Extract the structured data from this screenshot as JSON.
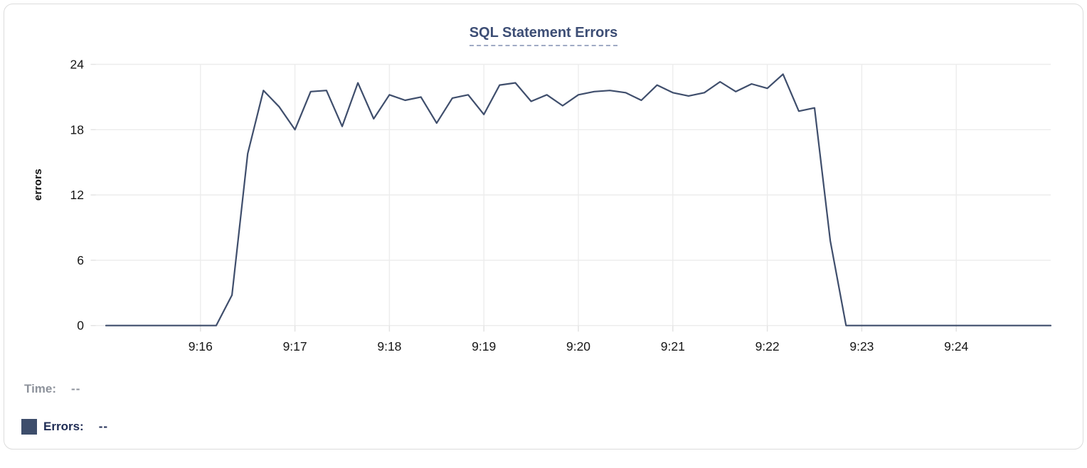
{
  "panel": {
    "title": "SQL Statement Errors"
  },
  "chart_data": {
    "type": "line",
    "title": "SQL Statement Errors",
    "xlabel": "",
    "ylabel": "errors",
    "ylim": [
      0,
      24
    ],
    "y_ticks": [
      0,
      6,
      12,
      18,
      24
    ],
    "x_tick_labels": [
      "9:16",
      "9:17",
      "9:18",
      "9:19",
      "9:20",
      "9:21",
      "9:22",
      "9:23",
      "9:24"
    ],
    "x_range": [
      "9:15:00",
      "9:25:00"
    ],
    "grid": true,
    "legend_position": "bottom-left",
    "series": [
      {
        "name": "Errors",
        "color": "#3f4e6c",
        "x": [
          "9:15:00",
          "9:15:10",
          "9:15:20",
          "9:15:30",
          "9:15:40",
          "9:15:50",
          "9:16:00",
          "9:16:10",
          "9:16:20",
          "9:16:30",
          "9:16:40",
          "9:16:50",
          "9:17:00",
          "9:17:10",
          "9:17:20",
          "9:17:30",
          "9:17:40",
          "9:17:50",
          "9:18:00",
          "9:18:10",
          "9:18:20",
          "9:18:30",
          "9:18:40",
          "9:18:50",
          "9:19:00",
          "9:19:10",
          "9:19:20",
          "9:19:30",
          "9:19:40",
          "9:19:50",
          "9:20:00",
          "9:20:10",
          "9:20:20",
          "9:20:30",
          "9:20:40",
          "9:20:50",
          "9:21:00",
          "9:21:10",
          "9:21:20",
          "9:21:30",
          "9:21:40",
          "9:21:50",
          "9:22:00",
          "9:22:10",
          "9:22:20",
          "9:22:30",
          "9:22:40",
          "9:22:50",
          "9:23:00",
          "9:23:10",
          "9:23:20",
          "9:23:30",
          "9:23:40",
          "9:23:50",
          "9:24:00",
          "9:24:10",
          "9:24:20",
          "9:24:30",
          "9:24:40",
          "9:24:50",
          "9:25:00"
        ],
        "values": [
          0,
          0,
          0,
          0,
          0,
          0,
          0,
          0,
          2.8,
          15.8,
          21.6,
          20.1,
          18,
          21.5,
          21.6,
          18.3,
          22.3,
          19,
          21.2,
          20.7,
          21,
          18.6,
          20.9,
          21.2,
          19.4,
          22.1,
          22.3,
          20.6,
          21.2,
          20.2,
          21.2,
          21.5,
          21.6,
          21.4,
          20.7,
          22.1,
          21.4,
          21.1,
          21.4,
          22.4,
          21.5,
          22.2,
          21.8,
          23.1,
          19.7,
          20,
          7.8,
          0,
          0,
          0,
          0,
          0,
          0,
          0,
          0,
          0,
          0,
          0,
          0,
          0,
          0
        ]
      }
    ]
  },
  "legend": {
    "time_label": "Time:",
    "time_value": "--",
    "errors_label": "Errors:",
    "errors_value": "--",
    "swatch_color": "#3d4d6b"
  },
  "colors": {
    "line_navy": "#3f4e6c",
    "title_navy": "#3d4e75",
    "title_underline": "#9faac4",
    "grid": "#ececec",
    "tick_mark": "#e2e2e2",
    "tick_text": "#161616",
    "muted_gray": "#8d929b",
    "legend_navy": "#202d55",
    "card_border": "#dcdcdc"
  }
}
